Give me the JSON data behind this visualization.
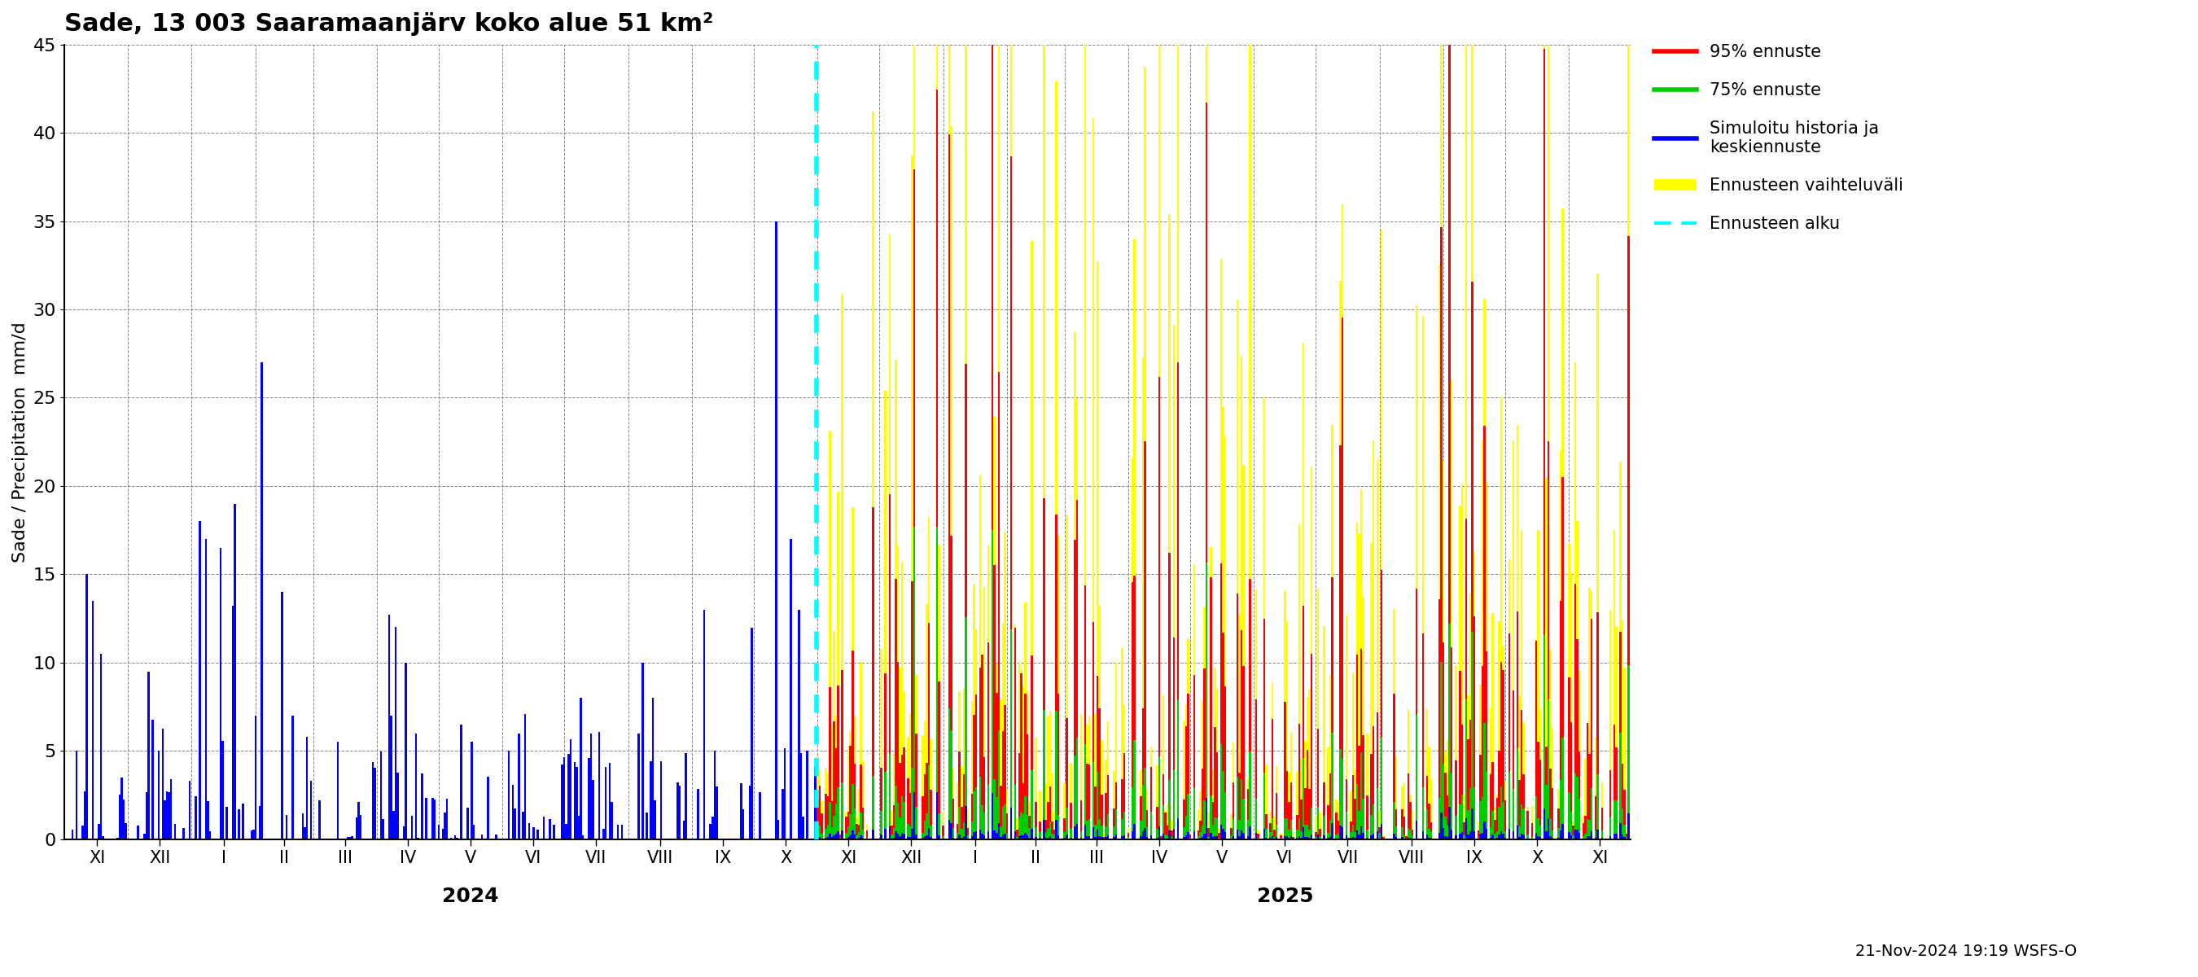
{
  "title": "Sade, 13 003 Saaramaanjärv koko alue 51 km²",
  "ylabel": "Sade / Precipitation  mm/d",
  "ylim": [
    0,
    45
  ],
  "yticks": [
    0,
    5,
    10,
    15,
    20,
    25,
    30,
    35,
    40,
    45
  ],
  "date_label": "21-Nov-2024 19:19 WSFS-O",
  "legend_items": [
    {
      "label": "95% ennuste",
      "color": "#ff0000"
    },
    {
      "label": "75% ennuste",
      "color": "#00cc00"
    },
    {
      "label": "Simuloitu historia ja\nkeskiennuste",
      "color": "#0000ff"
    },
    {
      "label": "Ennusteen vaihteluväli",
      "color": "#ffff00"
    },
    {
      "label": "Ennusteen alku",
      "color": "#00ffff",
      "linestyle": "--"
    }
  ],
  "hist_color": "#0000ff",
  "p95_color": "#ff0000",
  "p75_color": "#00cc00",
  "range_color": "#ffff00",
  "vline_color": "#00ffff",
  "background_color": "#ffffff",
  "grid_color": "#888888",
  "month_labels": [
    "XI",
    "XII",
    "I",
    "II",
    "III",
    "IV",
    "V",
    "VI",
    "VII",
    "VIII",
    "IX",
    "X",
    "XI",
    "XII",
    "I",
    "II",
    "III",
    "IV",
    "V",
    "VI",
    "VII",
    "VIII",
    "IX",
    "X",
    "XI"
  ],
  "month_lengths_hist": [
    30,
    31,
    31,
    28,
    31,
    30,
    31,
    30,
    31,
    31,
    30,
    31
  ],
  "month_lengths_fore": [
    30,
    31,
    31,
    28,
    31,
    30,
    31,
    30,
    31,
    31,
    30,
    31,
    30
  ],
  "year_labels": [
    "2024",
    "2025"
  ],
  "year_label_month_idx": [
    6,
    19
  ]
}
